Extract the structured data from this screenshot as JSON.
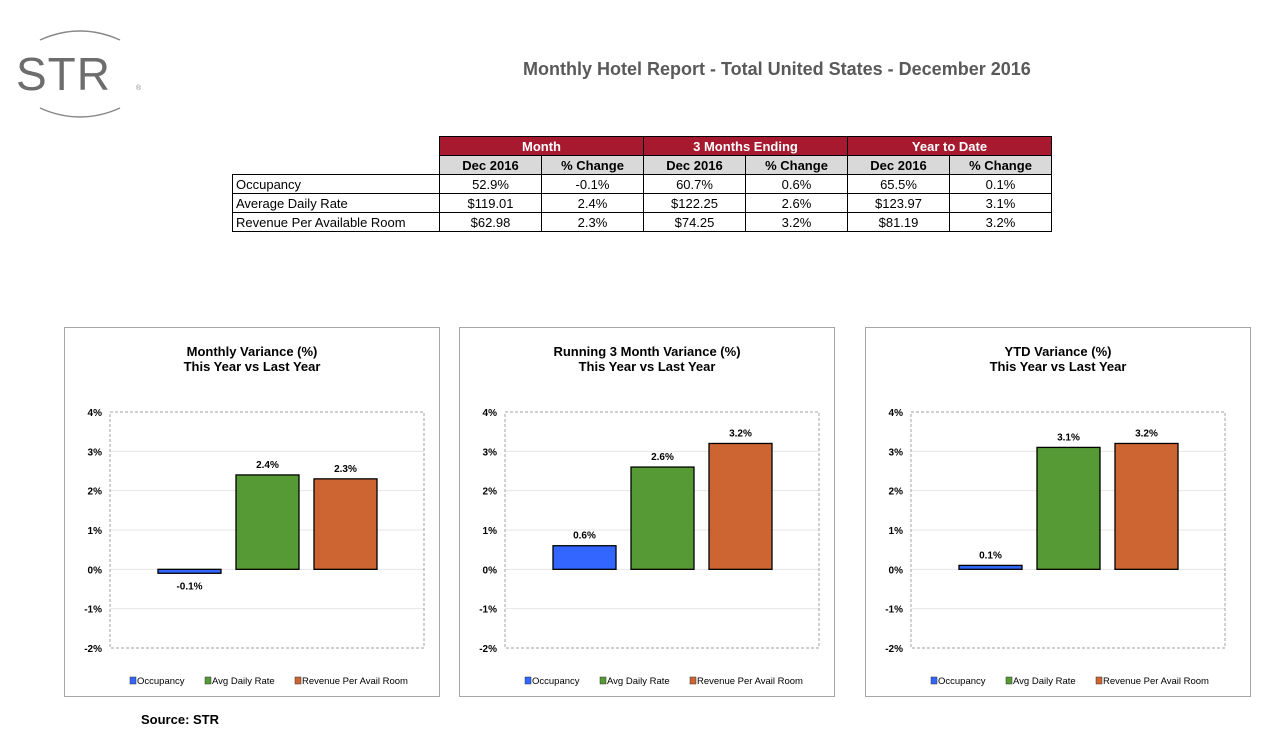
{
  "logo": {
    "text": "STR"
  },
  "title": "Monthly Hotel Report - Total United States - December 2016",
  "table": {
    "groups": [
      "Month",
      "3 Months Ending",
      "Year to Date"
    ],
    "subheaders": [
      "Dec 2016",
      "% Change",
      "Dec 2016",
      "% Change",
      "Dec 2016",
      "% Change"
    ],
    "rows": [
      {
        "label": "Occupancy",
        "values": [
          "52.9%",
          "-0.1%",
          "60.7%",
          "0.6%",
          "65.5%",
          "0.1%"
        ]
      },
      {
        "label": "Average Daily Rate",
        "values": [
          "$119.01",
          "2.4%",
          "$122.25",
          "2.6%",
          "$123.97",
          "3.1%"
        ]
      },
      {
        "label": "Revenue Per Available Room",
        "values": [
          "$62.98",
          "2.3%",
          "$74.25",
          "3.2%",
          "$81.19",
          "3.2%"
        ]
      }
    ]
  },
  "colors": {
    "header": "#a6192e",
    "subheader": "#d9d9d9",
    "occupancy": "#3366ff",
    "adr": "#559a34",
    "revpar": "#cd6532"
  },
  "chart_data": [
    {
      "type": "bar",
      "title": "Monthly Variance (%)",
      "subtitle": "This Year vs Last Year",
      "categories": [
        "Occupancy",
        "Avg Daily Rate",
        "Revenue Per Avail Room"
      ],
      "values": [
        -0.1,
        2.4,
        2.3
      ],
      "labels": [
        "-0.1%",
        "2.4%",
        "2.3%"
      ],
      "ylim": [
        -2,
        4
      ],
      "yticks": [
        "4%",
        "3%",
        "2%",
        "1%",
        "0%",
        "-1%",
        "-2%"
      ],
      "legend": "bottom",
      "grid": true
    },
    {
      "type": "bar",
      "title": "Running 3 Month Variance (%)",
      "subtitle": "This Year vs Last Year",
      "categories": [
        "Occupancy",
        "Avg Daily Rate",
        "Revenue Per Avail Room"
      ],
      "values": [
        0.6,
        2.6,
        3.2
      ],
      "labels": [
        "0.6%",
        "2.6%",
        "3.2%"
      ],
      "ylim": [
        -2,
        4
      ],
      "yticks": [
        "4%",
        "3%",
        "2%",
        "1%",
        "0%",
        "-1%",
        "-2%"
      ],
      "legend": "bottom",
      "grid": true
    },
    {
      "type": "bar",
      "title": "YTD Variance (%)",
      "subtitle": "This Year vs Last Year",
      "categories": [
        "Occupancy",
        "Avg Daily Rate",
        "Revenue Per Avail Room"
      ],
      "values": [
        0.1,
        3.1,
        3.2
      ],
      "labels": [
        "0.1%",
        "3.1%",
        "3.2%"
      ],
      "ylim": [
        -2,
        4
      ],
      "yticks": [
        "4%",
        "3%",
        "2%",
        "1%",
        "0%",
        "-1%",
        "-2%"
      ],
      "legend": "bottom",
      "grid": true
    }
  ],
  "source": "Source: STR"
}
